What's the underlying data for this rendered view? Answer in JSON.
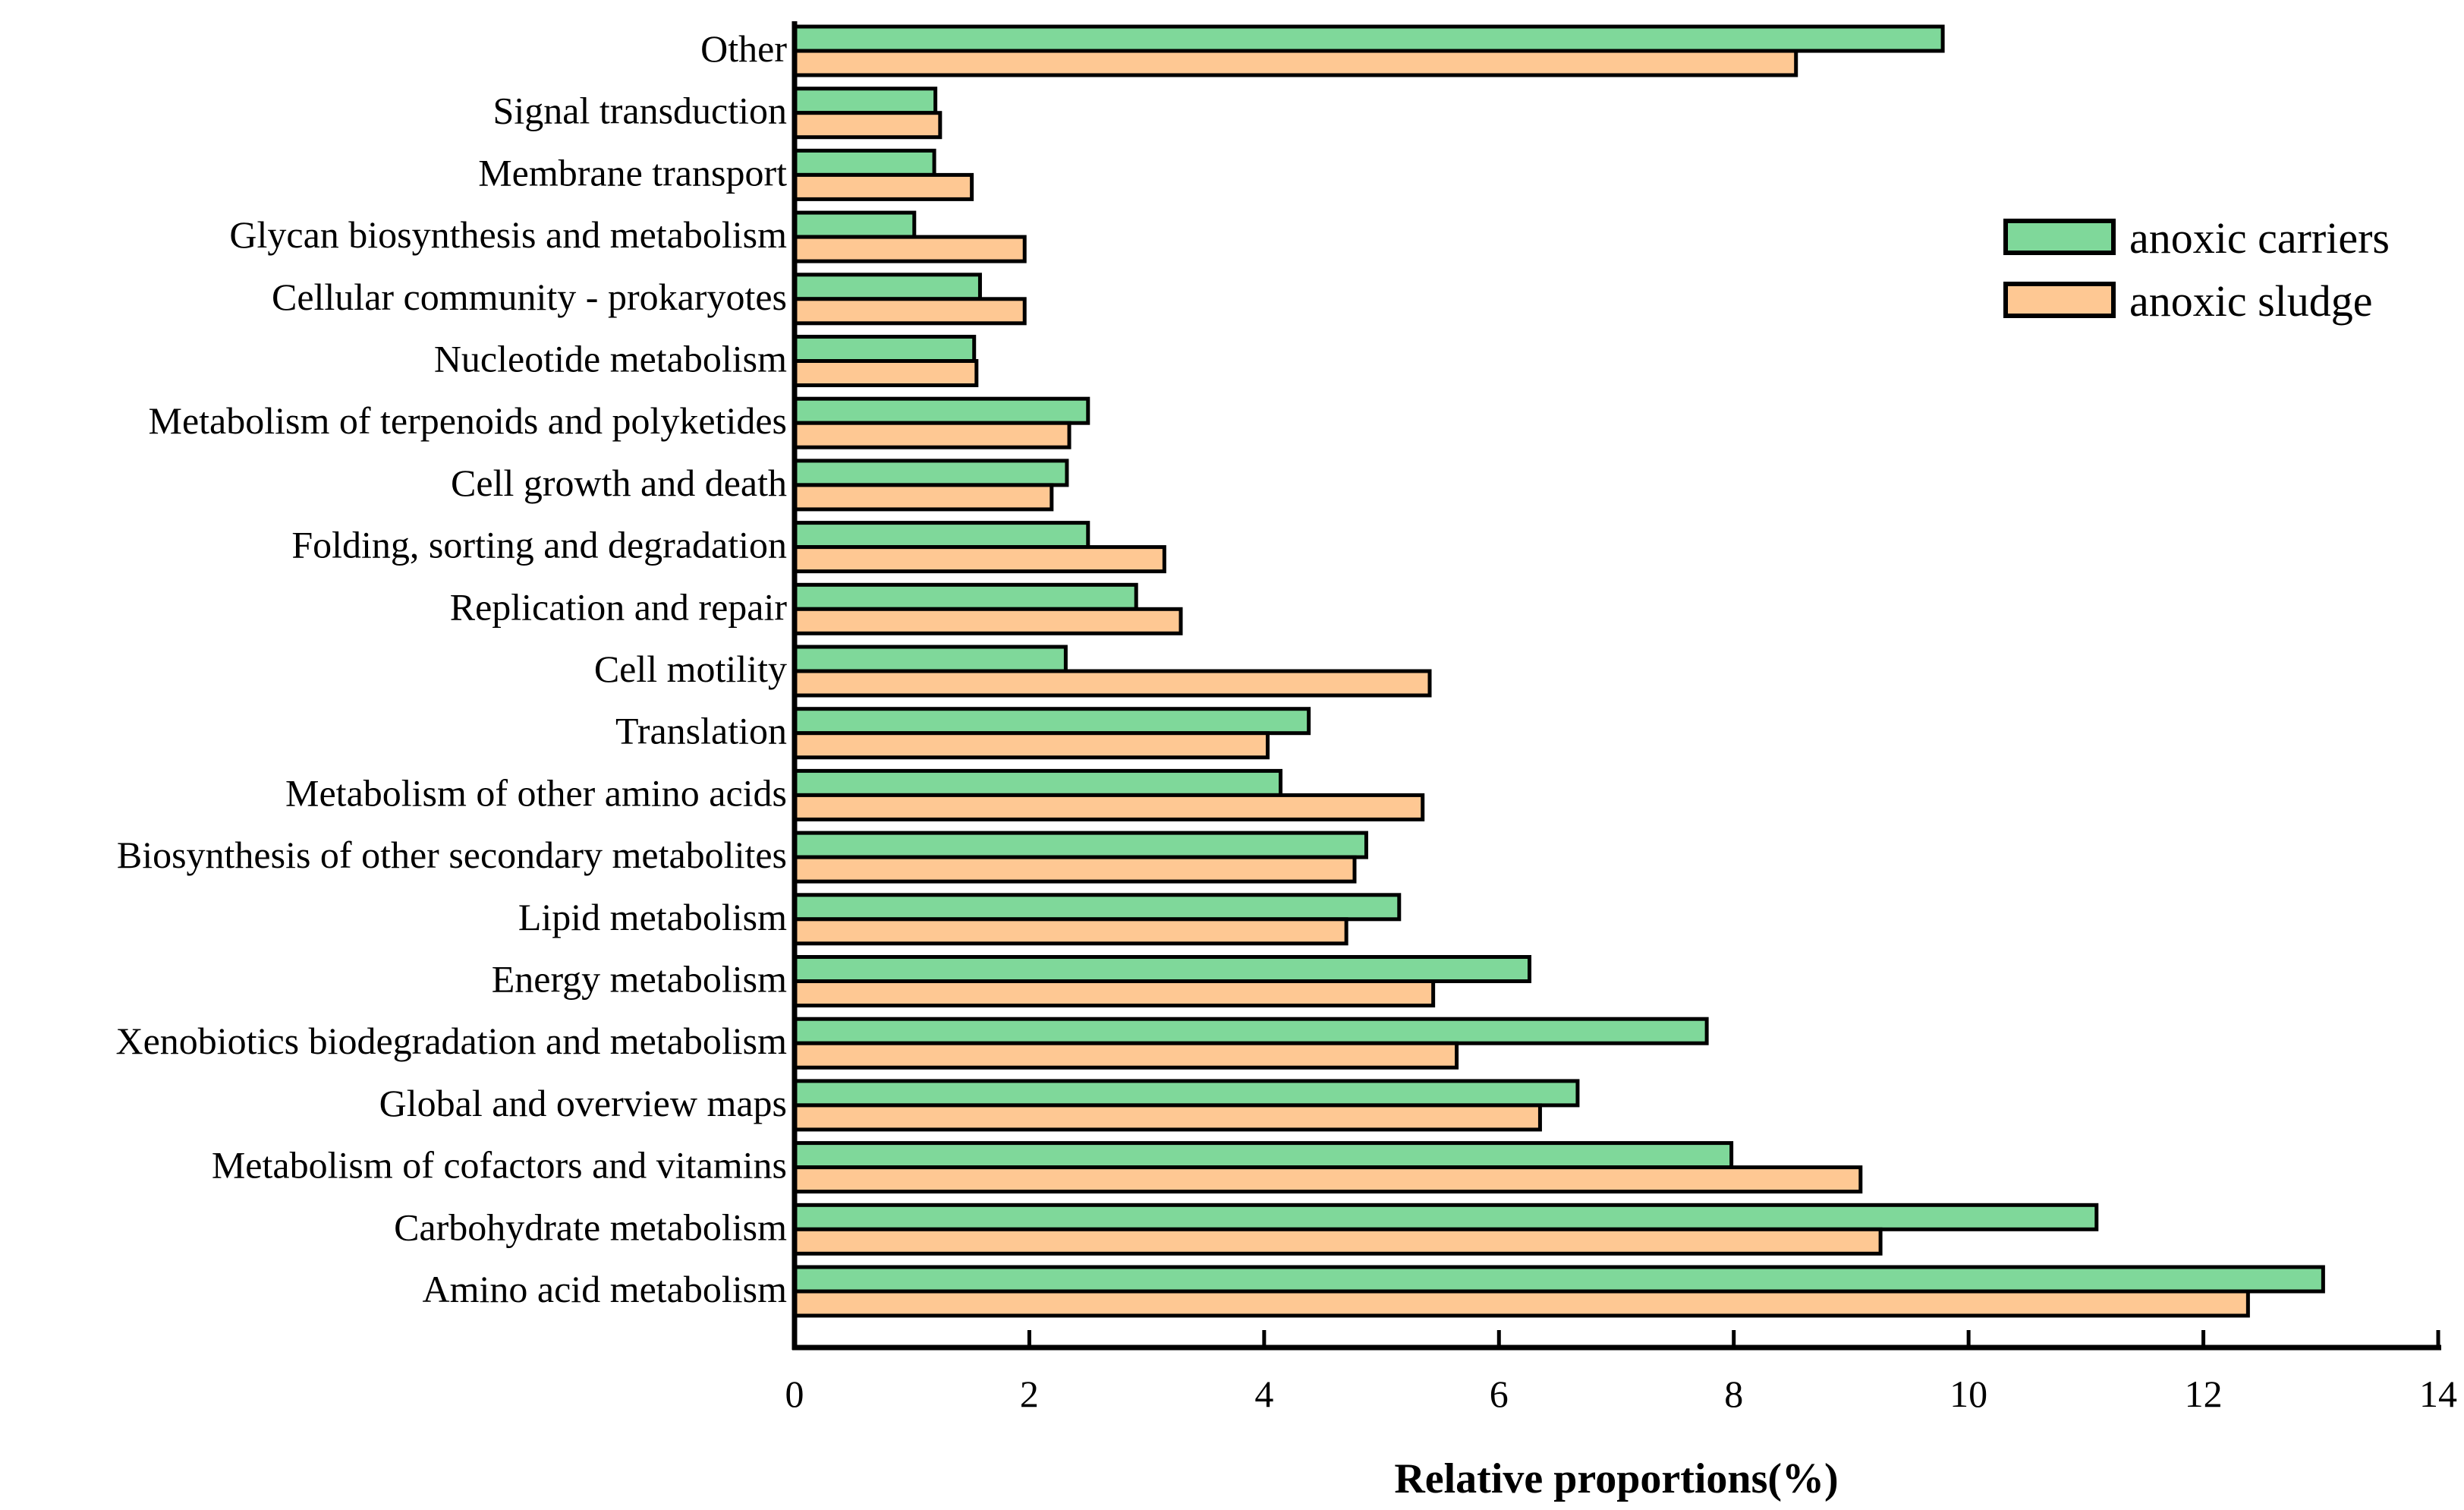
{
  "chart_data": {
    "type": "bar",
    "orientation": "horizontal",
    "title": "",
    "xlabel": "Relative proportions(%)",
    "ylabel": "",
    "xlim": [
      0,
      14
    ],
    "xticks": [
      0,
      2,
      4,
      6,
      8,
      10,
      12,
      14
    ],
    "grid": false,
    "legend_position": "top-right",
    "categories": [
      "Other",
      "Signal transduction",
      "Membrane transport",
      "Glycan biosynthesis and metabolism",
      "Cellular community - prokaryotes",
      "Nucleotide metabolism",
      "Metabolism of terpenoids and polyketides",
      "Cell growth and death",
      "Folding, sorting and degradation",
      "Replication and repair",
      "Cell motility",
      "Translation",
      "Metabolism of other amino acids",
      "Biosynthesis of other secondary metabolites",
      "Lipid metabolism",
      "Energy metabolism",
      "Xenobiotics biodegradation and metabolism",
      "Global and overview maps",
      "Metabolism of cofactors and vitamins",
      "Carbohydrate metabolism",
      "Amino acid metabolism"
    ],
    "series": [
      {
        "name": "anoxic carriers",
        "color": "#7fd89a",
        "values": [
          9.78,
          1.2,
          1.19,
          1.02,
          1.58,
          1.53,
          2.5,
          2.32,
          2.5,
          2.91,
          2.31,
          4.38,
          4.14,
          4.87,
          5.15,
          6.26,
          7.77,
          6.67,
          7.98,
          11.09,
          13.02
        ]
      },
      {
        "name": "anoxic sludge",
        "color": "#fec893",
        "values": [
          8.53,
          1.24,
          1.51,
          1.96,
          1.96,
          1.55,
          2.34,
          2.19,
          3.15,
          3.29,
          5.41,
          4.03,
          5.35,
          4.77,
          4.7,
          5.44,
          5.64,
          6.35,
          9.08,
          9.25,
          12.38
        ]
      }
    ]
  }
}
